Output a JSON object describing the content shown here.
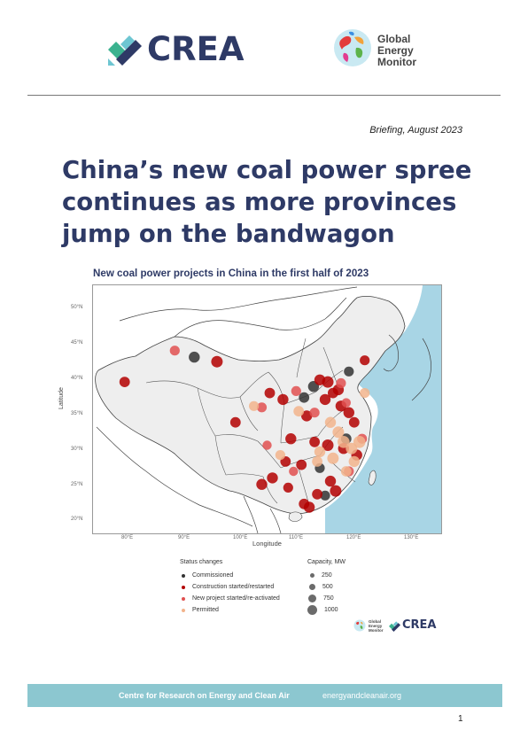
{
  "header": {
    "crea_logo_text": "CREA",
    "gem_logo_lines": [
      "Global",
      "Energy",
      "Monitor"
    ]
  },
  "briefing_label": "Briefing, August 2023",
  "title_lines": [
    "China’s new coal power spree",
    "continues as more provinces",
    "jump on the bandwagon"
  ],
  "figure": {
    "title": "New coal power projects in China in the first half of 2023",
    "xlabel": "Longitude",
    "ylabel": "Latitude",
    "x_ticks": [
      "80°E",
      "90°E",
      "100°E",
      "110°E",
      "120°E",
      "130°E"
    ],
    "y_ticks": [
      "50°N",
      "45°N",
      "40°N",
      "35°N",
      "30°N",
      "25°N",
      "20°N"
    ],
    "colors": {
      "commissioned": "#333333",
      "construction": "#b30000",
      "new_project": "#e05050",
      "permitted": "#f2b48c",
      "sea": "#a8d5e5",
      "land": "#eeeeee",
      "outside": "#ffffff"
    },
    "legend": {
      "status_title": "Status changes",
      "status_items": [
        {
          "label": "Commissioned",
          "color": "#333333"
        },
        {
          "label": "Construction started/restarted",
          "color": "#b30000"
        },
        {
          "label": "New project started/re-activated",
          "color": "#e05050"
        },
        {
          "label": "Permitted",
          "color": "#f2b48c"
        }
      ],
      "capacity_title": "Capacity, MW",
      "capacity_items": [
        "250",
        "500",
        "750",
        "1000"
      ]
    }
  },
  "chart_data": {
    "type": "scatter",
    "title": "New coal power projects in China in the first half of 2023",
    "xlabel": "Longitude",
    "ylabel": "Latitude",
    "xlim": [
      70,
      136
    ],
    "ylim": [
      17,
      55
    ],
    "series": [
      {
        "name": "Commissioned",
        "points": [
          {
            "lon": 89.2,
            "lat": 44.0,
            "mw": 700
          },
          {
            "lon": 111.8,
            "lat": 39.5,
            "mw": 700
          },
          {
            "lon": 118.5,
            "lat": 41.8,
            "mw": 500
          },
          {
            "lon": 110.0,
            "lat": 37.8,
            "mw": 600
          },
          {
            "lon": 118.0,
            "lat": 31.5,
            "mw": 600
          },
          {
            "lon": 113.0,
            "lat": 27.0,
            "mw": 500
          },
          {
            "lon": 114.0,
            "lat": 22.8,
            "mw": 500
          }
        ]
      },
      {
        "name": "Construction started/restarted",
        "points": [
          {
            "lon": 93.5,
            "lat": 43.3,
            "mw": 800
          },
          {
            "lon": 76.0,
            "lat": 40.2,
            "mw": 600
          },
          {
            "lon": 97.0,
            "lat": 34.0,
            "mw": 600
          },
          {
            "lon": 103.5,
            "lat": 38.5,
            "mw": 600
          },
          {
            "lon": 106.0,
            "lat": 37.5,
            "mw": 700
          },
          {
            "lon": 113.0,
            "lat": 40.5,
            "mw": 700
          },
          {
            "lon": 114.5,
            "lat": 40.2,
            "mw": 800
          },
          {
            "lon": 114.0,
            "lat": 37.5,
            "mw": 700
          },
          {
            "lon": 115.5,
            "lat": 38.5,
            "mw": 600
          },
          {
            "lon": 116.5,
            "lat": 39.0,
            "mw": 700
          },
          {
            "lon": 121.5,
            "lat": 43.5,
            "mw": 500
          },
          {
            "lon": 117.0,
            "lat": 36.5,
            "mw": 700
          },
          {
            "lon": 118.5,
            "lat": 35.5,
            "mw": 700
          },
          {
            "lon": 119.5,
            "lat": 34.0,
            "mw": 600
          },
          {
            "lon": 110.5,
            "lat": 35.0,
            "mw": 700
          },
          {
            "lon": 107.5,
            "lat": 31.5,
            "mw": 700
          },
          {
            "lon": 112.0,
            "lat": 31.0,
            "mw": 600
          },
          {
            "lon": 114.5,
            "lat": 30.5,
            "mw": 800
          },
          {
            "lon": 117.5,
            "lat": 30.0,
            "mw": 700
          },
          {
            "lon": 120.0,
            "lat": 29.0,
            "mw": 700
          },
          {
            "lon": 106.5,
            "lat": 28.0,
            "mw": 600
          },
          {
            "lon": 109.5,
            "lat": 27.5,
            "mw": 600
          },
          {
            "lon": 104.0,
            "lat": 25.5,
            "mw": 700
          },
          {
            "lon": 115.0,
            "lat": 25.0,
            "mw": 700
          },
          {
            "lon": 116.0,
            "lat": 23.5,
            "mw": 800
          },
          {
            "lon": 112.5,
            "lat": 23.0,
            "mw": 600
          },
          {
            "lon": 110.0,
            "lat": 21.5,
            "mw": 600
          },
          {
            "lon": 111.0,
            "lat": 21.0,
            "mw": 700
          },
          {
            "lon": 102.0,
            "lat": 24.5,
            "mw": 700
          },
          {
            "lon": 107.0,
            "lat": 24.0,
            "mw": 500
          }
        ]
      },
      {
        "name": "New project started/re-activated",
        "points": [
          {
            "lon": 85.5,
            "lat": 45.0,
            "mw": 500
          },
          {
            "lon": 102.0,
            "lat": 36.3,
            "mw": 500
          },
          {
            "lon": 108.5,
            "lat": 38.8,
            "mw": 500
          },
          {
            "lon": 117.0,
            "lat": 40.0,
            "mw": 500
          },
          {
            "lon": 118.0,
            "lat": 37.0,
            "mw": 400
          },
          {
            "lon": 112.0,
            "lat": 35.5,
            "mw": 500
          },
          {
            "lon": 121.0,
            "lat": 31.5,
            "mw": 500
          },
          {
            "lon": 108.0,
            "lat": 26.5,
            "mw": 400
          },
          {
            "lon": 103.0,
            "lat": 30.5,
            "mw": 400
          },
          {
            "lon": 118.5,
            "lat": 26.5,
            "mw": 500
          }
        ]
      },
      {
        "name": "Permitted",
        "points": [
          {
            "lon": 100.5,
            "lat": 36.5,
            "mw": 500
          },
          {
            "lon": 109.0,
            "lat": 35.7,
            "mw": 600
          },
          {
            "lon": 115.0,
            "lat": 34.0,
            "mw": 700
          },
          {
            "lon": 116.5,
            "lat": 32.5,
            "mw": 800
          },
          {
            "lon": 117.5,
            "lat": 31.0,
            "mw": 900
          },
          {
            "lon": 120.5,
            "lat": 31.0,
            "mw": 900
          },
          {
            "lon": 119.0,
            "lat": 30.0,
            "mw": 800
          },
          {
            "lon": 113.0,
            "lat": 29.5,
            "mw": 700
          },
          {
            "lon": 115.5,
            "lat": 28.5,
            "mw": 800
          },
          {
            "lon": 119.5,
            "lat": 28.0,
            "mw": 700
          },
          {
            "lon": 118.0,
            "lat": 26.5,
            "mw": 600
          },
          {
            "lon": 112.5,
            "lat": 28.0,
            "mw": 600
          },
          {
            "lon": 105.5,
            "lat": 29.0,
            "mw": 500
          },
          {
            "lon": 121.5,
            "lat": 38.5,
            "mw": 500
          }
        ]
      }
    ]
  },
  "mini_logos": {
    "gem_lines": [
      "Global",
      "Energy",
      "Monitor"
    ],
    "crea_text": "CREA"
  },
  "footer": {
    "org": "Centre for Research on Energy and Clean Air",
    "url": "energyandcleanair.org",
    "page_number": "1"
  }
}
